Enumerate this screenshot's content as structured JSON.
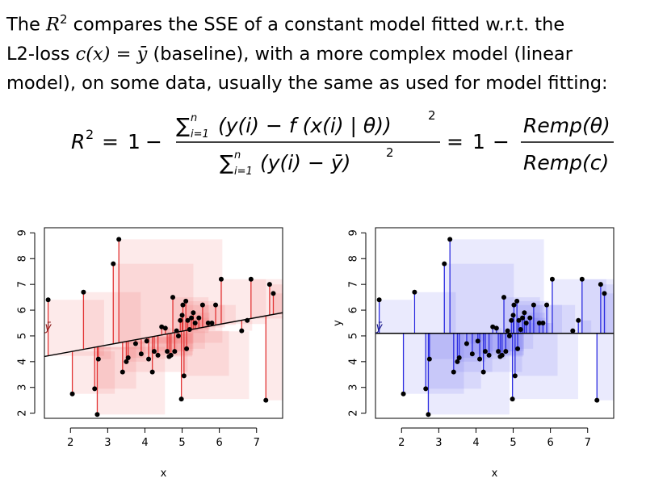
{
  "text": {
    "line1_pre": "The ",
    "line1_r": "R",
    "line1_sup": "2",
    "line1_post": " compares the SSE of a constant model fitted w.r.t. the",
    "line2_pre": "L2-loss ",
    "line2_math": "c(x) = ȳ",
    "line2_post": " (baseline), with a more complex model (linear",
    "line3": "model), on some data, usually the same as used for model fitting:"
  },
  "formula": {
    "lhs": "R",
    "lhs_sup": "2",
    "eq": "=",
    "one": "1",
    "minus": "−",
    "num_sum": "∑",
    "num_sup": "n",
    "num_sub": "i=1",
    "num_body": "(y(i) − f (x(i) | θ))",
    "num_pow": "2",
    "den_sum": "∑",
    "den_sup": "n",
    "den_sub": "i=1",
    "den_body": "(y(i) − ȳ)",
    "den_pow": "2",
    "rhs_num": "Remp(θ)",
    "rhs_den": "Remp(c)"
  },
  "chart_data": [
    {
      "type": "scatter",
      "title": "",
      "xlabel": "x",
      "ylabel": "",
      "xlim": [
        1.3,
        7.7
      ],
      "ylim": [
        1.8,
        9.2
      ],
      "xticks": [
        2,
        3,
        4,
        5,
        6,
        7
      ],
      "yticks": [
        2,
        3,
        4,
        5,
        6,
        7,
        8,
        9
      ],
      "model": "linear",
      "fit_line": [
        [
          1.3,
          4.2
        ],
        [
          7.7,
          5.9
        ]
      ],
      "mean_label": "ȳ",
      "colors": {
        "line": "#e23434",
        "square": "#ee6b6b",
        "fit": "#000000"
      },
      "points": [
        [
          1.4,
          6.4
        ],
        [
          2.05,
          2.75
        ],
        [
          2.35,
          6.7
        ],
        [
          2.65,
          2.95
        ],
        [
          2.72,
          1.95
        ],
        [
          2.75,
          4.1
        ],
        [
          3.15,
          7.8
        ],
        [
          3.3,
          8.75
        ],
        [
          3.4,
          3.6
        ],
        [
          3.5,
          4.0
        ],
        [
          3.55,
          4.15
        ],
        [
          3.75,
          4.7
        ],
        [
          3.9,
          4.3
        ],
        [
          4.05,
          4.8
        ],
        [
          4.1,
          4.1
        ],
        [
          4.2,
          3.6
        ],
        [
          4.25,
          4.4
        ],
        [
          4.35,
          4.25
        ],
        [
          4.45,
          5.35
        ],
        [
          4.55,
          5.3
        ],
        [
          4.6,
          4.4
        ],
        [
          4.65,
          4.2
        ],
        [
          4.7,
          4.25
        ],
        [
          4.75,
          6.5
        ],
        [
          4.8,
          4.4
        ],
        [
          4.85,
          5.2
        ],
        [
          4.9,
          5.0
        ],
        [
          4.95,
          5.6
        ],
        [
          4.98,
          2.55
        ],
        [
          5.0,
          5.8
        ],
        [
          5.02,
          6.2
        ],
        [
          5.05,
          3.45
        ],
        [
          5.1,
          6.35
        ],
        [
          5.12,
          4.5
        ],
        [
          5.15,
          5.6
        ],
        [
          5.2,
          5.25
        ],
        [
          5.25,
          5.7
        ],
        [
          5.3,
          5.9
        ],
        [
          5.35,
          5.5
        ],
        [
          5.45,
          5.7
        ],
        [
          5.55,
          6.2
        ],
        [
          5.7,
          5.5
        ],
        [
          5.8,
          5.5
        ],
        [
          5.9,
          6.2
        ],
        [
          6.05,
          7.2
        ],
        [
          6.6,
          5.2
        ],
        [
          6.75,
          5.6
        ],
        [
          6.85,
          7.2
        ],
        [
          7.25,
          2.5
        ],
        [
          7.35,
          7.0
        ],
        [
          7.45,
          6.65
        ]
      ]
    },
    {
      "type": "scatter",
      "title": "",
      "xlabel": "x",
      "ylabel": "y",
      "xlim": [
        1.3,
        7.7
      ],
      "ylim": [
        1.8,
        9.2
      ],
      "xticks": [
        2,
        3,
        4,
        5,
        6,
        7
      ],
      "yticks": [
        2,
        3,
        4,
        5,
        6,
        7,
        8,
        9
      ],
      "model": "constant",
      "fit_line": [
        [
          1.3,
          5.1
        ],
        [
          7.7,
          5.1
        ]
      ],
      "mean_label": "ȳ",
      "colors": {
        "line": "#2b2be0",
        "square": "#6b6bee",
        "fit": "#000000"
      },
      "points": [
        [
          1.4,
          6.4
        ],
        [
          2.05,
          2.75
        ],
        [
          2.35,
          6.7
        ],
        [
          2.65,
          2.95
        ],
        [
          2.72,
          1.95
        ],
        [
          2.75,
          4.1
        ],
        [
          3.15,
          7.8
        ],
        [
          3.3,
          8.75
        ],
        [
          3.4,
          3.6
        ],
        [
          3.5,
          4.0
        ],
        [
          3.55,
          4.15
        ],
        [
          3.75,
          4.7
        ],
        [
          3.9,
          4.3
        ],
        [
          4.05,
          4.8
        ],
        [
          4.1,
          4.1
        ],
        [
          4.2,
          3.6
        ],
        [
          4.25,
          4.4
        ],
        [
          4.35,
          4.25
        ],
        [
          4.45,
          5.35
        ],
        [
          4.55,
          5.3
        ],
        [
          4.6,
          4.4
        ],
        [
          4.65,
          4.2
        ],
        [
          4.7,
          4.25
        ],
        [
          4.75,
          6.5
        ],
        [
          4.8,
          4.4
        ],
        [
          4.85,
          5.2
        ],
        [
          4.9,
          5.0
        ],
        [
          4.95,
          5.6
        ],
        [
          4.98,
          2.55
        ],
        [
          5.0,
          5.8
        ],
        [
          5.02,
          6.2
        ],
        [
          5.05,
          3.45
        ],
        [
          5.1,
          6.35
        ],
        [
          5.12,
          4.5
        ],
        [
          5.15,
          5.6
        ],
        [
          5.2,
          5.25
        ],
        [
          5.25,
          5.7
        ],
        [
          5.3,
          5.9
        ],
        [
          5.35,
          5.5
        ],
        [
          5.45,
          5.7
        ],
        [
          5.55,
          6.2
        ],
        [
          5.7,
          5.5
        ],
        [
          5.8,
          5.5
        ],
        [
          5.9,
          6.2
        ],
        [
          6.05,
          7.2
        ],
        [
          6.6,
          5.2
        ],
        [
          6.75,
          5.6
        ],
        [
          6.85,
          7.2
        ],
        [
          7.25,
          2.5
        ],
        [
          7.35,
          7.0
        ],
        [
          7.45,
          6.65
        ]
      ]
    }
  ]
}
